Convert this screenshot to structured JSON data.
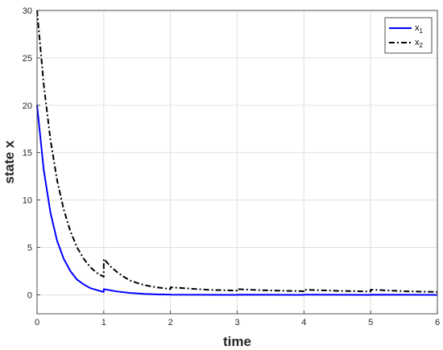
{
  "chart_data": {
    "type": "line",
    "title": "",
    "xlabel": "time",
    "ylabel": "state x",
    "xlim": [
      0,
      6
    ],
    "ylim": [
      -2,
      30
    ],
    "xticks": [
      "0",
      "1",
      "2",
      "3",
      "4",
      "5",
      "6"
    ],
    "yticks": [
      "0",
      "5",
      "10",
      "15",
      "20",
      "25",
      "30"
    ],
    "grid": true,
    "legend_position": "top-right",
    "series": [
      {
        "name": "x1",
        "legend_main": "x",
        "legend_sub": "1",
        "color": "#0000ff",
        "style": "solid",
        "points": [
          [
            0,
            20
          ],
          [
            0.1,
            13.2
          ],
          [
            0.2,
            8.7
          ],
          [
            0.3,
            5.7
          ],
          [
            0.4,
            3.8
          ],
          [
            0.5,
            2.5
          ],
          [
            0.6,
            1.6
          ],
          [
            0.7,
            1.1
          ],
          [
            0.8,
            0.7
          ],
          [
            0.9,
            0.5
          ],
          [
            1.0,
            0.3
          ],
          [
            1.0,
            0.6
          ],
          [
            1.2,
            0.35
          ],
          [
            1.4,
            0.2
          ],
          [
            1.6,
            0.1
          ],
          [
            1.8,
            0.05
          ],
          [
            2.0,
            0.03
          ],
          [
            2.0,
            0.02
          ],
          [
            3.0,
            0.0
          ],
          [
            3.0,
            0.02
          ],
          [
            4.0,
            0.0
          ],
          [
            4.0,
            0.02
          ],
          [
            5.0,
            0.0
          ],
          [
            5.0,
            0.02
          ],
          [
            6.0,
            0.0
          ]
        ]
      },
      {
        "name": "x2",
        "legend_main": "x",
        "legend_sub": "2",
        "color": "#000000",
        "style": "dashdot",
        "points": [
          [
            0,
            30
          ],
          [
            0.1,
            22.2
          ],
          [
            0.2,
            16.4
          ],
          [
            0.3,
            12.1
          ],
          [
            0.4,
            9.0
          ],
          [
            0.5,
            6.7
          ],
          [
            0.6,
            5.0
          ],
          [
            0.7,
            3.8
          ],
          [
            0.8,
            2.9
          ],
          [
            0.9,
            2.3
          ],
          [
            1.0,
            1.9
          ],
          [
            1.0,
            3.8
          ],
          [
            1.1,
            3.0
          ],
          [
            1.2,
            2.4
          ],
          [
            1.3,
            1.9
          ],
          [
            1.4,
            1.5
          ],
          [
            1.5,
            1.25
          ],
          [
            1.6,
            1.05
          ],
          [
            1.7,
            0.9
          ],
          [
            1.8,
            0.78
          ],
          [
            1.9,
            0.7
          ],
          [
            2.0,
            0.6
          ],
          [
            2.0,
            0.8
          ],
          [
            2.3,
            0.65
          ],
          [
            2.6,
            0.52
          ],
          [
            3.0,
            0.45
          ],
          [
            3.0,
            0.6
          ],
          [
            3.4,
            0.48
          ],
          [
            4.0,
            0.38
          ],
          [
            4.0,
            0.55
          ],
          [
            4.5,
            0.42
          ],
          [
            5.0,
            0.35
          ],
          [
            5.0,
            0.55
          ],
          [
            5.5,
            0.38
          ],
          [
            6.0,
            0.3
          ]
        ]
      }
    ]
  }
}
